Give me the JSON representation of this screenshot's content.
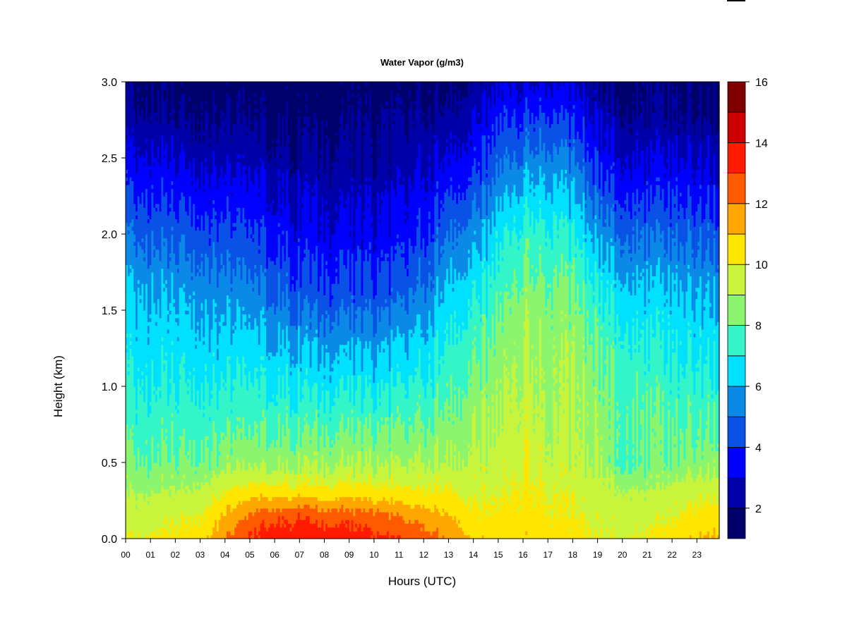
{
  "chart_data": {
    "type": "heatmap",
    "title": "Water Vapor (g/m3)",
    "xlabel": "Hours (UTC)",
    "ylabel": "Height (km)",
    "xlim": [
      0,
      23.9
    ],
    "ylim": [
      0.0,
      3.0
    ],
    "x_ticks": [
      "00",
      "01",
      "02",
      "03",
      "04",
      "05",
      "06",
      "07",
      "08",
      "09",
      "10",
      "11",
      "12",
      "13",
      "14",
      "15",
      "16",
      "17",
      "18",
      "19",
      "20",
      "21",
      "22",
      "23"
    ],
    "y_ticks": [
      "0.0",
      "0.5",
      "1.0",
      "1.5",
      "2.0",
      "2.5",
      "3.0"
    ],
    "colorbar": {
      "min": 1,
      "max": 16,
      "ticks": [
        "2",
        "4",
        "6",
        "8",
        "10",
        "12",
        "14",
        "16"
      ],
      "levels": [
        1,
        2,
        3,
        4,
        5,
        6,
        7,
        8,
        9,
        10,
        11,
        12,
        13,
        14,
        15,
        16
      ],
      "colors": [
        "#00006b",
        "#0000a8",
        "#0000ff",
        "#0a52e6",
        "#0a8ae6",
        "#00e0ff",
        "#33f5c8",
        "#8cf56e",
        "#c8f53c",
        "#ffe600",
        "#ffa600",
        "#ff5a00",
        "#ff1a00",
        "#cc0000",
        "#800000"
      ]
    },
    "profiles": {
      "hours": [
        0,
        1,
        2,
        3,
        4,
        5,
        6,
        7,
        8,
        9,
        10,
        11,
        12,
        13,
        14,
        15,
        16,
        17,
        18,
        19,
        20,
        21,
        22,
        23,
        23.9
      ],
      "heights_km": [
        0.0,
        0.15,
        0.3,
        0.5,
        0.8,
        1.2,
        1.6,
        2.0,
        2.4,
        2.8,
        3.0
      ],
      "values": [
        [
          10.0,
          9.5,
          9.0,
          8.2,
          7.5,
          6.8,
          6.3,
          5.0,
          3.6,
          2.2,
          1.8
        ],
        [
          10.2,
          9.6,
          9.0,
          8.2,
          7.5,
          6.7,
          6.1,
          4.8,
          3.5,
          2.2,
          1.8
        ],
        [
          10.3,
          9.8,
          9.2,
          8.2,
          7.5,
          6.7,
          6.0,
          4.7,
          3.3,
          2.0,
          1.7
        ],
        [
          10.6,
          10.0,
          9.3,
          8.2,
          7.5,
          6.6,
          5.8,
          4.5,
          3.1,
          1.9,
          1.6
        ],
        [
          12.0,
          11.0,
          10.0,
          8.5,
          7.5,
          6.5,
          5.5,
          4.2,
          2.9,
          1.8,
          1.5
        ],
        [
          13.0,
          12.2,
          10.5,
          8.6,
          7.5,
          6.5,
          5.3,
          4.0,
          2.8,
          1.7,
          1.5
        ],
        [
          13.6,
          12.7,
          10.6,
          8.7,
          7.6,
          6.4,
          5.0,
          3.7,
          2.6,
          1.7,
          1.4
        ],
        [
          13.8,
          12.9,
          10.6,
          8.8,
          7.6,
          6.2,
          4.6,
          3.4,
          2.5,
          1.6,
          1.4
        ],
        [
          13.6,
          12.6,
          10.5,
          8.8,
          7.6,
          6.0,
          4.4,
          3.3,
          2.4,
          1.6,
          1.4
        ],
        [
          13.5,
          12.5,
          10.5,
          8.8,
          7.5,
          6.0,
          4.3,
          3.2,
          2.3,
          1.6,
          1.4
        ],
        [
          13.2,
          12.4,
          10.4,
          8.8,
          7.5,
          5.9,
          4.3,
          3.2,
          2.3,
          1.7,
          1.4
        ],
        [
          13.0,
          12.0,
          10.3,
          8.8,
          7.6,
          6.2,
          4.6,
          3.4,
          2.5,
          1.8,
          1.5
        ],
        [
          12.5,
          11.4,
          10.2,
          9.0,
          7.8,
          6.6,
          5.2,
          3.9,
          3.0,
          2.0,
          1.6
        ],
        [
          12.0,
          11.2,
          10.2,
          9.2,
          8.4,
          7.5,
          6.6,
          5.2,
          3.6,
          2.4,
          1.8
        ],
        [
          10.8,
          10.2,
          9.8,
          9.2,
          8.6,
          7.8,
          6.8,
          5.4,
          3.8,
          2.6,
          2.0
        ],
        [
          10.5,
          10.2,
          9.9,
          9.4,
          9.0,
          8.4,
          7.6,
          6.6,
          5.0,
          3.6,
          2.8
        ],
        [
          10.8,
          10.5,
          10.2,
          10.0,
          9.6,
          9.2,
          8.6,
          7.5,
          5.8,
          4.0,
          3.0
        ],
        [
          10.5,
          10.2,
          10.0,
          9.5,
          9.0,
          8.8,
          8.3,
          7.4,
          5.9,
          4.0,
          3.0
        ],
        [
          10.4,
          10.0,
          9.8,
          9.3,
          9.0,
          8.8,
          8.2,
          7.0,
          5.4,
          3.6,
          2.8
        ],
        [
          10.0,
          9.8,
          9.6,
          9.0,
          8.7,
          8.2,
          7.3,
          5.8,
          4.1,
          2.8,
          2.1
        ],
        [
          10.0,
          9.6,
          9.2,
          8.0,
          8.2,
          7.6,
          6.6,
          5.1,
          3.5,
          2.2,
          1.8
        ],
        [
          10.1,
          9.6,
          9.2,
          8.0,
          8.0,
          7.3,
          6.3,
          4.9,
          3.3,
          2.0,
          1.7
        ],
        [
          10.4,
          9.9,
          9.4,
          8.2,
          7.8,
          7.0,
          6.2,
          4.8,
          3.4,
          2.0,
          1.7
        ],
        [
          11.0,
          10.4,
          9.7,
          8.5,
          7.8,
          6.9,
          6.1,
          4.7,
          3.2,
          2.0,
          1.6
        ],
        [
          11.2,
          10.6,
          9.8,
          8.6,
          7.8,
          6.9,
          6.0,
          4.6,
          3.1,
          1.9,
          1.6
        ]
      ]
    }
  }
}
